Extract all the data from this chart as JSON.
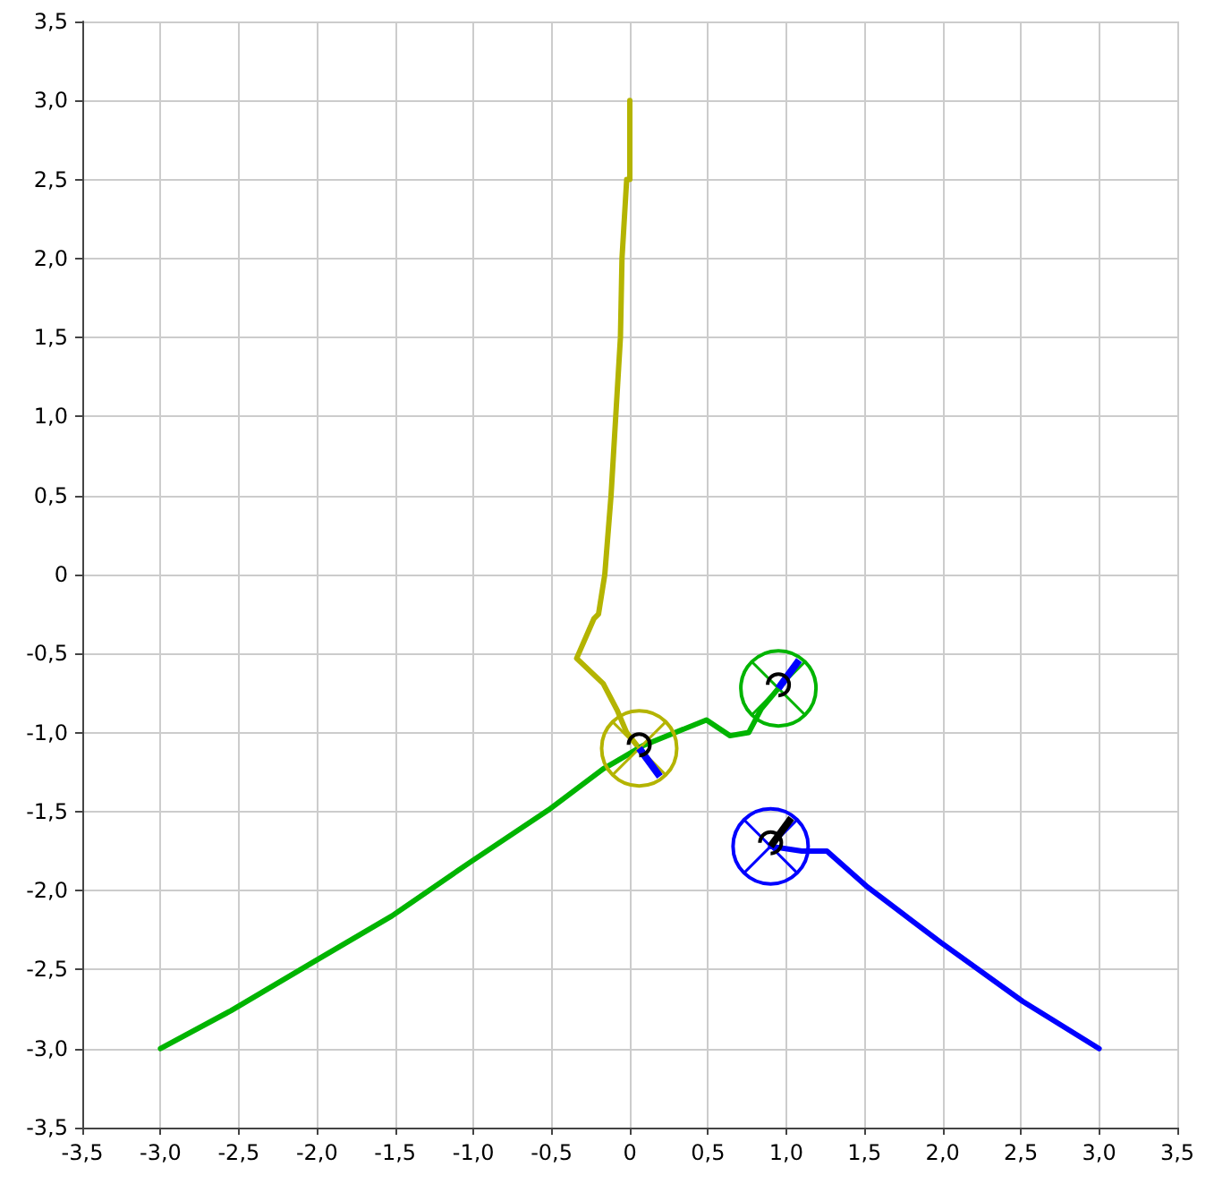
{
  "chart_data": {
    "type": "line",
    "series": [
      {
        "color": "#b4b400",
        "x": [
          0,
          0,
          -0.02,
          -0.05,
          -0.06,
          -0.09,
          -0.12,
          -0.16,
          -0.2,
          -0.23,
          -0.34,
          -0.17,
          -0.08,
          -0.02,
          0.06
        ],
        "values": [
          3.0,
          2.5,
          2.5,
          2.0,
          1.5,
          1.0,
          0.5,
          0,
          -0.25,
          -0.28,
          -0.53,
          -0.69,
          -0.86,
          -1.0,
          -1.1
        ]
      },
      {
        "color": "#00b400",
        "x": [
          -3.0,
          -2.55,
          -2.02,
          -1.52,
          -1.02,
          -0.52,
          -0.17,
          -0.1,
          0.09,
          0.49,
          0.64,
          0.76,
          0.84,
          0.95
        ],
        "values": [
          -3.0,
          -2.76,
          -2.45,
          -2.16,
          -1.82,
          -1.49,
          -1.23,
          -1.19,
          -1.08,
          -0.92,
          -1.02,
          -1.0,
          -0.85,
          -0.72
        ]
      },
      {
        "color": "#0000ff",
        "x": [
          3.0,
          2.51,
          1.99,
          1.51,
          1.26,
          1.1,
          0.9
        ],
        "values": [
          -3.0,
          -2.7,
          -2.33,
          -1.97,
          -1.75,
          -1.75,
          -1.72
        ]
      }
    ],
    "xlim": [
      -3.5,
      3.5
    ],
    "ylim": [
      -3.5,
      3.5
    ],
    "xticks": [
      {
        "value": -3.5,
        "label": "-3,5"
      },
      {
        "value": -3,
        "label": "-3,0"
      },
      {
        "value": -2.5,
        "label": "-2,5"
      },
      {
        "value": -2,
        "label": "-2,0"
      },
      {
        "value": -1.5,
        "label": "-1,5"
      },
      {
        "value": -1,
        "label": "-1,0"
      },
      {
        "value": -0.5,
        "label": "-0,5"
      },
      0,
      {
        "value": 0.5,
        "label": "0,5"
      },
      {
        "value": 1,
        "label": "1,0"
      },
      {
        "value": 1.5,
        "label": "1,5"
      },
      {
        "value": 2,
        "label": "2,0"
      },
      {
        "value": 2.5,
        "label": "2,5"
      },
      {
        "value": 3,
        "label": "3,0"
      },
      {
        "value": 3.5,
        "label": "3,5"
      }
    ],
    "yticks": [
      {
        "value": -3.5,
        "label": "-3,5"
      },
      {
        "value": -3,
        "label": "-3,0"
      },
      {
        "value": -2.5,
        "label": "-2,5"
      },
      {
        "value": -2,
        "label": "-2,0"
      },
      {
        "value": -1.5,
        "label": "-1,5"
      },
      {
        "value": -1,
        "label": "-1,0"
      },
      {
        "value": -0.5,
        "label": "-0,5"
      },
      0,
      {
        "value": 0.5,
        "label": "0,5"
      },
      {
        "value": 1,
        "label": "1,0"
      },
      {
        "value": 1.5,
        "label": "1,5"
      },
      {
        "value": 2,
        "label": "2,0"
      },
      {
        "value": 2.5,
        "label": "2,5"
      },
      {
        "value": 3,
        "label": "3,0"
      },
      {
        "value": 3.5,
        "label": "3,5"
      }
    ],
    "grid": true,
    "marker": "none",
    "line_style": "solid"
  }
}
